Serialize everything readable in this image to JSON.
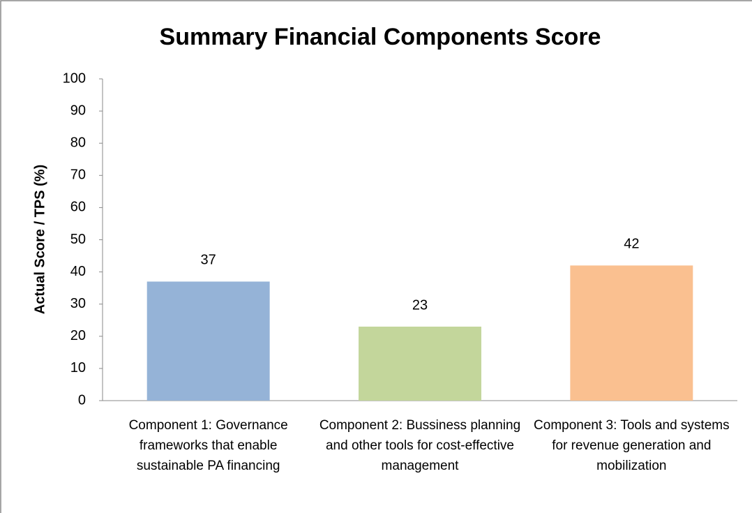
{
  "chart_data": {
    "type": "bar",
    "title": "Summary Financial Components Score",
    "y_label": "Actual Score / TPS (%)",
    "categories": [
      "Component 1: Governance frameworks that enable sustainable PA financing",
      "Component 2: Bussiness planning and other tools for cost-effective management",
      "Component 3: Tools and systems for revenue generation and mobilization"
    ],
    "values": [
      37,
      23,
      42
    ],
    "colors": [
      "#95b3d7",
      "#c3d69b",
      "#fac090"
    ],
    "ylim": [
      0,
      100
    ],
    "yticks": [
      0,
      10,
      20,
      30,
      40,
      50,
      60,
      70,
      80,
      90,
      100
    ],
    "grid": false
  }
}
